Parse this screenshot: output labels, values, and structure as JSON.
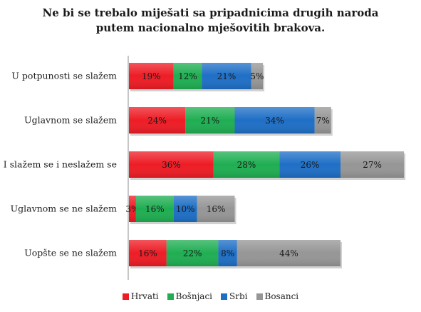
{
  "chart_data": {
    "type": "bar",
    "orientation": "horizontal",
    "stacked": true,
    "title": [
      "Ne bi se trebalo miješati sa pripadnicima drugih naroda",
      "putem nacionalno mješovitih brakova."
    ],
    "categories": [
      "U potpunosti se  slažem",
      "Uglavnom se slažem",
      "I slažem se i neslažem se",
      "Uglavnom se ne slažem",
      "Uopšte se ne slažem"
    ],
    "series": [
      {
        "name": "Hrvati",
        "color": "#ee1c25",
        "values": [
          19,
          24,
          36,
          3,
          16
        ]
      },
      {
        "name": "Bošnjaci",
        "color": "#1fae52",
        "values": [
          12,
          21,
          28,
          16,
          22
        ]
      },
      {
        "name": "Srbi",
        "color": "#1e6fc6",
        "values": [
          21,
          34,
          26,
          10,
          8
        ]
      },
      {
        "name": "Bosanci",
        "color": "#969696",
        "values": [
          5,
          7,
          27,
          16,
          44
        ]
      }
    ],
    "value_suffix": "%",
    "legend_position": "bottom",
    "grid": false
  }
}
